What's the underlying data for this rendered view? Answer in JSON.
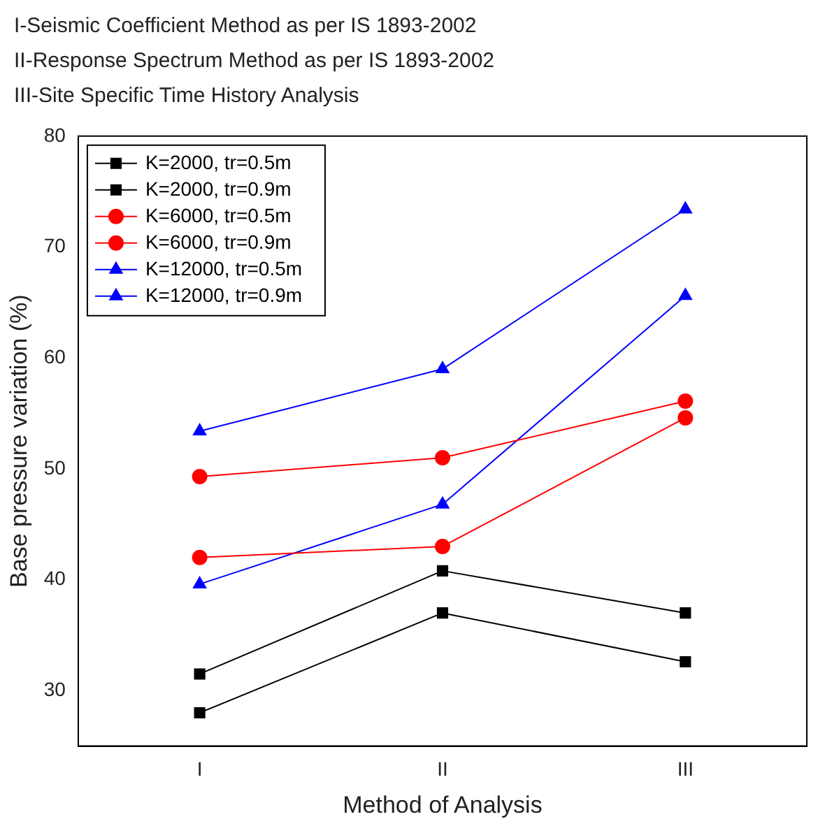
{
  "chart_data": {
    "type": "line",
    "xlabel": "Method of Analysis",
    "ylabel": "Base pressure variation (%)",
    "annotations": [
      "I-Seismic Coefficient Method as per IS 1893-2002",
      "II-Response Spectrum Method as per IS 1893-2002",
      "III-Site Specific Time History Analysis"
    ],
    "categories": [
      "I",
      "II",
      "III"
    ],
    "ylim": [
      25,
      80
    ],
    "yticks": [
      30,
      40,
      50,
      60,
      70,
      80
    ],
    "grid": false,
    "legend": "top left",
    "line_style": "solid",
    "series": [
      {
        "name": "K=2000, tr=0.5m",
        "color": "#000000",
        "marker": "square",
        "values": [
          31.5,
          40.8,
          37
        ]
      },
      {
        "name": "K=2000, tr=0.9m",
        "color": "#000000",
        "marker": "square",
        "values": [
          28,
          37,
          32.6
        ]
      },
      {
        "name": "K=6000, tr=0.5m",
        "color": "#ff0000",
        "marker": "circle",
        "values": [
          49.3,
          51,
          56.1
        ]
      },
      {
        "name": "K=6000, tr=0.9m",
        "color": "#ff0000",
        "marker": "circle",
        "values": [
          42,
          43,
          54.6
        ]
      },
      {
        "name": "K=12000, tr=0.5m",
        "color": "#0000ff",
        "marker": "triangle",
        "values": [
          53.4,
          59,
          73.4
        ]
      },
      {
        "name": "K=12000, tr=0.9m",
        "color": "#0000ff",
        "marker": "triangle",
        "values": [
          39.6,
          46.8,
          65.6
        ]
      }
    ]
  }
}
